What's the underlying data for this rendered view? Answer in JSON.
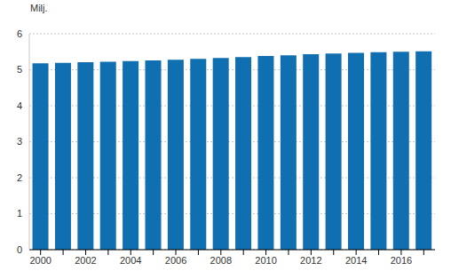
{
  "chart_data": {
    "type": "bar",
    "ylabel": "Milj.",
    "categories": [
      "2000",
      null,
      "2002",
      null,
      "2004",
      null,
      "2006",
      null,
      "2008",
      null,
      "2010",
      null,
      "2012",
      null,
      "2014",
      null,
      "2016",
      null
    ],
    "values": [
      5.18,
      5.19,
      5.21,
      5.22,
      5.24,
      5.26,
      5.28,
      5.3,
      5.33,
      5.35,
      5.38,
      5.4,
      5.43,
      5.45,
      5.47,
      5.49,
      5.5,
      5.51
    ],
    "color": "#0f6fb0",
    "ylim": [
      0,
      6
    ],
    "yticks": [
      0,
      1,
      2,
      3,
      4,
      5,
      6
    ],
    "grid": true
  }
}
